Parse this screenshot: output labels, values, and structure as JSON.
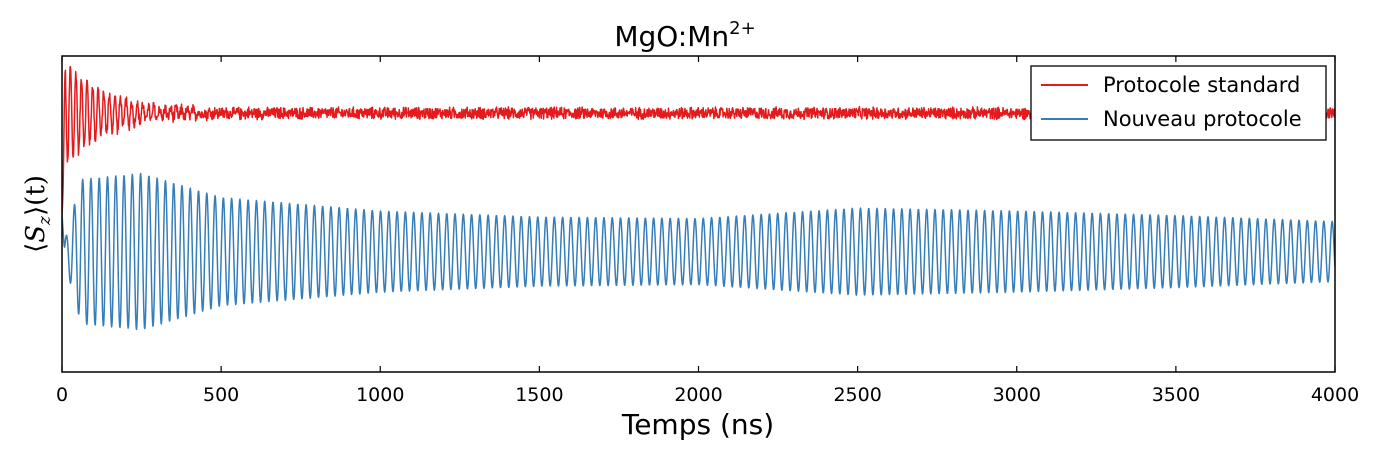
{
  "chart_data": {
    "type": "line",
    "title": "MgO:Mn",
    "title_superscript": "2+",
    "xlabel": "Temps (ns)",
    "ylabel": {
      "open_bracket": "⟨",
      "symbol": "S",
      "subscript": "z",
      "close_bracket": "⟩",
      "arg": "(t)"
    },
    "xlim": [
      0,
      4000
    ],
    "ylim": [
      -1.05,
      1.05
    ],
    "yticks_shown": false,
    "x_ticks": [
      0,
      500,
      1000,
      1500,
      2000,
      2500,
      3000,
      3500,
      4000
    ],
    "x_tick_labels": [
      "0",
      "500",
      "1000",
      "1500",
      "2000",
      "2500",
      "3000",
      "3500",
      "4000"
    ],
    "grid": false,
    "legend_position": "top-right",
    "colors": {
      "standard": "#e41a1c",
      "nouveau": "#377eb8",
      "axes": "#000000",
      "background": "#ffffff"
    },
    "series": [
      {
        "name": "Protocole standard",
        "color": "#e41a1c",
        "x_start": 0,
        "x_end": 4000,
        "baseline": 0.67,
        "period_ns": 17.5,
        "initial_amplitude": 0.37,
        "decay_ns": 140,
        "noise_amplitude": 0.025,
        "start_value": 0.0
      },
      {
        "name": "Nouveau protocole",
        "color": "#377eb8",
        "x_start": 0,
        "x_end": 4000,
        "baseline": -0.25,
        "period_ns": 26,
        "amplitude_envelope": [
          {
            "x": 0,
            "amp": 0.0
          },
          {
            "x": 60,
            "amp": 0.48
          },
          {
            "x": 250,
            "amp": 0.52
          },
          {
            "x": 500,
            "amp": 0.36
          },
          {
            "x": 1000,
            "amp": 0.27
          },
          {
            "x": 1500,
            "amp": 0.23
          },
          {
            "x": 2000,
            "amp": 0.22
          },
          {
            "x": 2500,
            "amp": 0.29
          },
          {
            "x": 3000,
            "amp": 0.27
          },
          {
            "x": 3500,
            "amp": 0.24
          },
          {
            "x": 4000,
            "amp": 0.2
          }
        ],
        "start_value": 0.0
      }
    ]
  }
}
